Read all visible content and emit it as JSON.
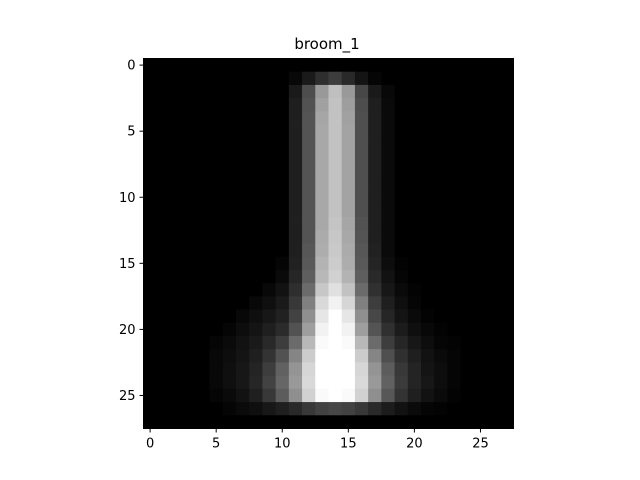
{
  "chart_data": {
    "type": "heatmap",
    "title": "broom_1",
    "colormap": "gray",
    "rows": 28,
    "cols": 28,
    "x_ticks": [
      0,
      5,
      10,
      15,
      20,
      25
    ],
    "y_ticks": [
      0,
      5,
      10,
      15,
      20,
      25
    ],
    "value_range": [
      0,
      1
    ],
    "values": [
      [
        0,
        0,
        0,
        0,
        0,
        0,
        0,
        0,
        0,
        0,
        0,
        0,
        0,
        0,
        0,
        0,
        0,
        0,
        0,
        0,
        0,
        0,
        0,
        0,
        0,
        0,
        0,
        0
      ],
      [
        0,
        0,
        0,
        0,
        0,
        0,
        0,
        0,
        0,
        0,
        0,
        0.03,
        0.1,
        0.18,
        0.24,
        0.16,
        0.08,
        0.02,
        0,
        0,
        0,
        0,
        0,
        0,
        0,
        0,
        0,
        0
      ],
      [
        0,
        0,
        0,
        0,
        0,
        0,
        0,
        0,
        0,
        0,
        0,
        0.1,
        0.3,
        0.6,
        0.75,
        0.6,
        0.28,
        0.1,
        0.03,
        0,
        0,
        0,
        0,
        0,
        0,
        0,
        0,
        0
      ],
      [
        0,
        0,
        0,
        0,
        0,
        0,
        0,
        0,
        0,
        0,
        0,
        0.12,
        0.32,
        0.63,
        0.76,
        0.62,
        0.3,
        0.12,
        0.04,
        0,
        0,
        0,
        0,
        0,
        0,
        0,
        0,
        0
      ],
      [
        0,
        0,
        0,
        0,
        0,
        0,
        0,
        0,
        0,
        0,
        0,
        0.12,
        0.33,
        0.65,
        0.76,
        0.63,
        0.31,
        0.12,
        0.04,
        0,
        0,
        0,
        0,
        0,
        0,
        0,
        0,
        0
      ],
      [
        0,
        0,
        0,
        0,
        0,
        0,
        0,
        0,
        0,
        0,
        0,
        0.12,
        0.33,
        0.66,
        0.76,
        0.64,
        0.31,
        0.12,
        0.04,
        0,
        0,
        0,
        0,
        0,
        0,
        0,
        0,
        0
      ],
      [
        0,
        0,
        0,
        0,
        0,
        0,
        0,
        0,
        0,
        0,
        0,
        0.12,
        0.33,
        0.66,
        0.76,
        0.64,
        0.31,
        0.12,
        0.04,
        0,
        0,
        0,
        0,
        0,
        0,
        0,
        0,
        0
      ],
      [
        0,
        0,
        0,
        0,
        0,
        0,
        0,
        0,
        0,
        0,
        0,
        0.12,
        0.33,
        0.66,
        0.76,
        0.64,
        0.31,
        0.12,
        0.04,
        0,
        0,
        0,
        0,
        0,
        0,
        0,
        0,
        0
      ],
      [
        0,
        0,
        0,
        0,
        0,
        0,
        0,
        0,
        0,
        0,
        0,
        0.12,
        0.33,
        0.66,
        0.76,
        0.64,
        0.31,
        0.12,
        0.04,
        0,
        0,
        0,
        0,
        0,
        0,
        0,
        0,
        0
      ],
      [
        0,
        0,
        0,
        0,
        0,
        0,
        0,
        0,
        0,
        0,
        0,
        0.12,
        0.33,
        0.66,
        0.76,
        0.64,
        0.31,
        0.12,
        0.04,
        0,
        0,
        0,
        0,
        0,
        0,
        0,
        0,
        0
      ],
      [
        0,
        0,
        0,
        0,
        0,
        0,
        0,
        0,
        0,
        0,
        0,
        0.12,
        0.33,
        0.66,
        0.76,
        0.64,
        0.31,
        0.12,
        0.04,
        0,
        0,
        0,
        0,
        0,
        0,
        0,
        0,
        0
      ],
      [
        0,
        0,
        0,
        0,
        0,
        0,
        0,
        0,
        0,
        0,
        0,
        0.12,
        0.33,
        0.66,
        0.76,
        0.64,
        0.31,
        0.12,
        0.04,
        0,
        0,
        0,
        0,
        0,
        0,
        0,
        0,
        0
      ],
      [
        0,
        0,
        0,
        0,
        0,
        0,
        0,
        0,
        0,
        0,
        0,
        0.12,
        0.33,
        0.66,
        0.77,
        0.65,
        0.32,
        0.12,
        0.04,
        0,
        0,
        0,
        0,
        0,
        0,
        0,
        0,
        0
      ],
      [
        0,
        0,
        0,
        0,
        0,
        0,
        0,
        0,
        0,
        0,
        0,
        0.12,
        0.33,
        0.67,
        0.78,
        0.66,
        0.33,
        0.12,
        0.04,
        0,
        0,
        0,
        0,
        0,
        0,
        0,
        0,
        0
      ],
      [
        0,
        0,
        0,
        0,
        0,
        0,
        0,
        0,
        0,
        0,
        0,
        0.12,
        0.34,
        0.68,
        0.79,
        0.67,
        0.34,
        0.13,
        0.04,
        0,
        0,
        0,
        0,
        0,
        0,
        0,
        0,
        0
      ],
      [
        0,
        0,
        0,
        0,
        0,
        0,
        0,
        0,
        0,
        0,
        0.02,
        0.13,
        0.35,
        0.7,
        0.8,
        0.68,
        0.35,
        0.14,
        0.05,
        0.01,
        0,
        0,
        0,
        0,
        0,
        0,
        0,
        0
      ],
      [
        0,
        0,
        0,
        0,
        0,
        0,
        0,
        0,
        0,
        0,
        0.04,
        0.15,
        0.37,
        0.72,
        0.82,
        0.7,
        0.37,
        0.16,
        0.07,
        0.02,
        0,
        0,
        0,
        0,
        0,
        0,
        0,
        0
      ],
      [
        0,
        0,
        0,
        0,
        0,
        0,
        0,
        0,
        0,
        0.03,
        0.07,
        0.18,
        0.42,
        0.78,
        0.88,
        0.76,
        0.42,
        0.19,
        0.09,
        0.04,
        0.01,
        0,
        0,
        0,
        0,
        0,
        0,
        0
      ],
      [
        0,
        0,
        0,
        0,
        0,
        0,
        0,
        0,
        0.03,
        0.06,
        0.1,
        0.22,
        0.5,
        0.85,
        0.95,
        0.84,
        0.5,
        0.24,
        0.12,
        0.06,
        0.02,
        0,
        0,
        0,
        0,
        0,
        0,
        0
      ],
      [
        0,
        0,
        0,
        0,
        0,
        0,
        0,
        0.03,
        0.06,
        0.09,
        0.13,
        0.26,
        0.56,
        0.9,
        1,
        0.9,
        0.56,
        0.28,
        0.15,
        0.08,
        0.04,
        0.01,
        0,
        0,
        0,
        0,
        0,
        0
      ],
      [
        0,
        0,
        0,
        0,
        0,
        0,
        0.02,
        0.05,
        0.08,
        0.12,
        0.17,
        0.32,
        0.62,
        0.95,
        1,
        0.95,
        0.62,
        0.33,
        0.19,
        0.11,
        0.06,
        0.03,
        0.01,
        0,
        0,
        0,
        0,
        0
      ],
      [
        0,
        0,
        0,
        0,
        0,
        0.02,
        0.04,
        0.07,
        0.1,
        0.16,
        0.24,
        0.42,
        0.72,
        0.98,
        1,
        0.98,
        0.72,
        0.42,
        0.24,
        0.15,
        0.09,
        0.05,
        0.02,
        0.01,
        0,
        0,
        0,
        0
      ],
      [
        0,
        0,
        0,
        0,
        0,
        0.03,
        0.05,
        0.08,
        0.12,
        0.2,
        0.32,
        0.52,
        0.8,
        1,
        1,
        1,
        0.8,
        0.52,
        0.31,
        0.19,
        0.12,
        0.07,
        0.04,
        0.02,
        0,
        0,
        0,
        0
      ],
      [
        0,
        0,
        0,
        0,
        0,
        0.03,
        0.06,
        0.09,
        0.14,
        0.24,
        0.38,
        0.58,
        0.84,
        1,
        1,
        1,
        0.84,
        0.58,
        0.36,
        0.22,
        0.14,
        0.08,
        0.05,
        0.02,
        0,
        0,
        0,
        0
      ],
      [
        0,
        0,
        0,
        0,
        0,
        0.03,
        0.06,
        0.09,
        0.15,
        0.26,
        0.4,
        0.6,
        0.85,
        1,
        1,
        1,
        0.85,
        0.6,
        0.38,
        0.23,
        0.14,
        0.09,
        0.05,
        0.02,
        0,
        0,
        0,
        0
      ],
      [
        0,
        0,
        0,
        0,
        0,
        0.02,
        0.04,
        0.07,
        0.12,
        0.22,
        0.36,
        0.56,
        0.82,
        0.98,
        1,
        0.98,
        0.82,
        0.56,
        0.34,
        0.2,
        0.12,
        0.07,
        0.04,
        0.01,
        0,
        0,
        0,
        0
      ],
      [
        0,
        0,
        0,
        0,
        0,
        0,
        0.02,
        0.04,
        0.06,
        0.09,
        0.12,
        0.16,
        0.22,
        0.26,
        0.28,
        0.26,
        0.22,
        0.16,
        0.11,
        0.07,
        0.04,
        0.02,
        0.01,
        0,
        0,
        0,
        0,
        0
      ],
      [
        0,
        0,
        0,
        0,
        0,
        0,
        0,
        0,
        0,
        0,
        0,
        0,
        0,
        0,
        0,
        0,
        0,
        0,
        0,
        0,
        0,
        0,
        0,
        0,
        0,
        0,
        0,
        0
      ]
    ]
  }
}
